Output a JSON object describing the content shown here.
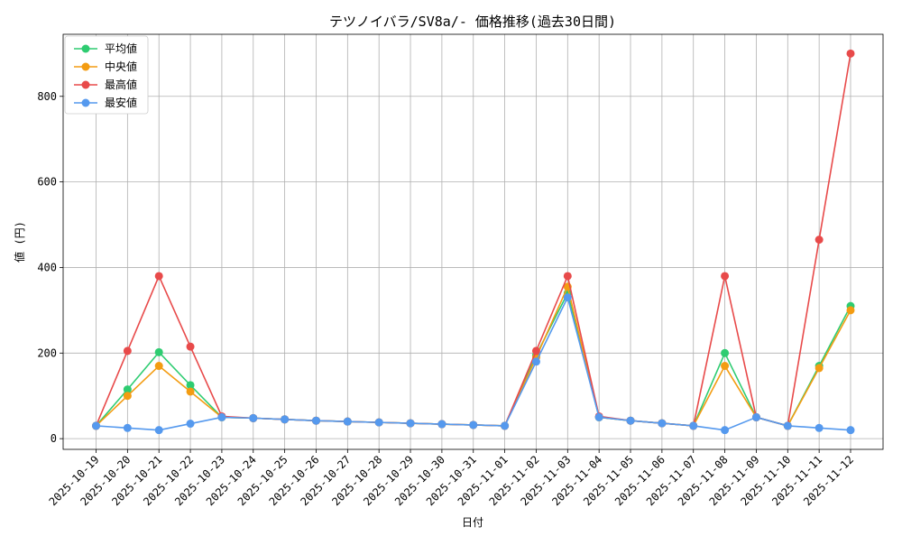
{
  "chart_data": {
    "type": "line",
    "title": "テツノイバラ/SV8a/- 価格推移(過去30日間)",
    "xlabel": "日付",
    "ylabel": "値 (円)",
    "categories": [
      "2025-10-19",
      "2025-10-20",
      "2025-10-21",
      "2025-10-22",
      "2025-10-23",
      "2025-10-24",
      "2025-10-25",
      "2025-10-26",
      "2025-10-27",
      "2025-10-28",
      "2025-10-29",
      "2025-10-30",
      "2025-10-31",
      "2025-11-01",
      "2025-11-02",
      "2025-11-03",
      "2025-11-04",
      "2025-11-05",
      "2025-11-06",
      "2025-11-07",
      "2025-11-08",
      "2025-11-09",
      "2025-11-10",
      "2025-11-11",
      "2025-11-12"
    ],
    "ylim": [
      -25,
      945
    ],
    "yticks": [
      0,
      200,
      400,
      600,
      800
    ],
    "grid": true,
    "legend_position": "top-left",
    "series": [
      {
        "name": "平均値",
        "color": "#2ecc71",
        "values": [
          30,
          115,
          202,
          125,
          50,
          48,
          45,
          42,
          40,
          38,
          36,
          34,
          32,
          30,
          195,
          340,
          50,
          42,
          36,
          30,
          200,
          50,
          30,
          170,
          310
        ]
      },
      {
        "name": "中央値",
        "color": "#f39c12",
        "values": [
          30,
          100,
          170,
          110,
          50,
          48,
          45,
          42,
          40,
          38,
          36,
          34,
          32,
          30,
          190,
          355,
          50,
          42,
          36,
          30,
          170,
          50,
          30,
          165,
          300
        ]
      },
      {
        "name": "最高値",
        "color": "#e84a4a",
        "values": [
          30,
          205,
          380,
          215,
          52,
          48,
          45,
          42,
          40,
          38,
          36,
          34,
          32,
          30,
          205,
          380,
          52,
          42,
          36,
          30,
          380,
          50,
          30,
          465,
          900
        ]
      },
      {
        "name": "最安値",
        "color": "#5599ee",
        "values": [
          30,
          25,
          20,
          35,
          50,
          48,
          45,
          42,
          40,
          38,
          36,
          34,
          32,
          30,
          180,
          330,
          50,
          42,
          36,
          30,
          20,
          50,
          30,
          25,
          20
        ]
      }
    ]
  }
}
